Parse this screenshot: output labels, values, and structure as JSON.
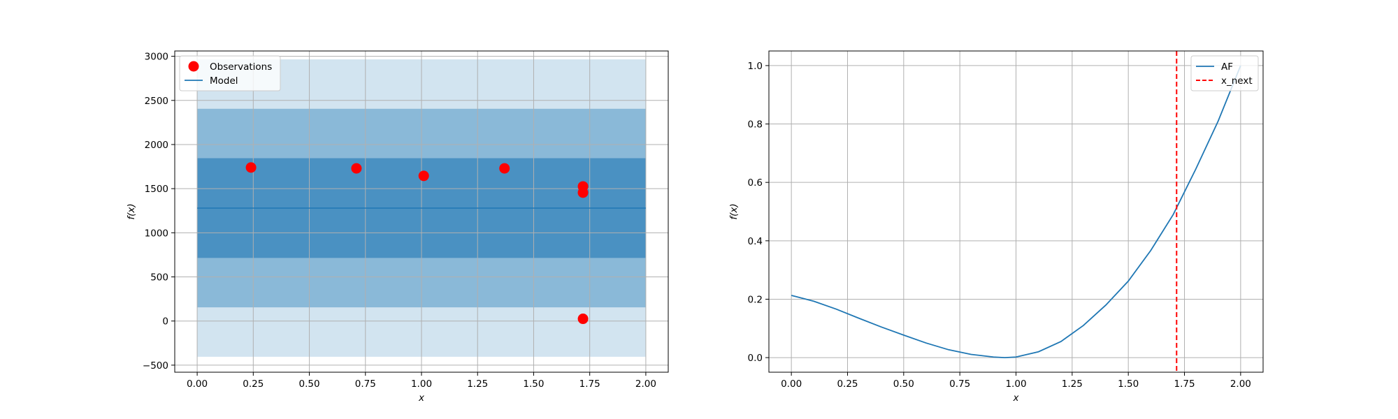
{
  "chart_data": [
    {
      "type": "line",
      "xlabel": "x",
      "ylabel": "f(x)",
      "xlim": [
        -0.1,
        2.1
      ],
      "ylim": [
        -580,
        3060
      ],
      "xticks": [
        0.0,
        0.25,
        0.5,
        0.75,
        1.0,
        1.25,
        1.5,
        1.75,
        2.0
      ],
      "xtick_labels": [
        "0.00",
        "0.25",
        "0.50",
        "0.75",
        "1.00",
        "1.25",
        "1.50",
        "1.75",
        "2.00"
      ],
      "yticks": [
        -500,
        0,
        500,
        1000,
        1500,
        2000,
        2500,
        3000
      ],
      "ytick_labels": [
        "−500",
        "0",
        "500",
        "1000",
        "1500",
        "2000",
        "2500",
        "3000"
      ],
      "grid": true,
      "legend": {
        "placement": "upper left",
        "entries": [
          {
            "label": "Observations",
            "marker": "circle",
            "color": "#ff0000"
          },
          {
            "label": "Model",
            "marker": "line",
            "color": "#1f77b4"
          }
        ]
      },
      "model": {
        "name": "Model",
        "x": [
          0.0,
          2.0
        ],
        "y": [
          1280,
          1280
        ],
        "color": "#1f77b4"
      },
      "bands": [
        {
          "lower": -405,
          "upper": 2965,
          "opacity": 0.2
        },
        {
          "lower": 155,
          "upper": 2405,
          "opacity": 0.4
        },
        {
          "lower": 715,
          "upper": 1845,
          "opacity": 0.6
        }
      ],
      "band_x": [
        0.0,
        2.0
      ],
      "band_color": "#1f77b4",
      "observations": {
        "name": "Observations",
        "color": "#ff0000",
        "points": [
          {
            "x": 0.24,
            "y": 1740
          },
          {
            "x": 0.71,
            "y": 1730
          },
          {
            "x": 1.01,
            "y": 1645
          },
          {
            "x": 1.37,
            "y": 1730
          },
          {
            "x": 1.72,
            "y": 1525
          },
          {
            "x": 1.72,
            "y": 1455
          },
          {
            "x": 1.72,
            "y": 25
          }
        ]
      }
    },
    {
      "type": "line",
      "xlabel": "x",
      "ylabel": "f(x)",
      "xlim": [
        -0.1,
        2.1
      ],
      "ylim": [
        -0.05,
        1.05
      ],
      "xticks": [
        0.0,
        0.25,
        0.5,
        0.75,
        1.0,
        1.25,
        1.5,
        1.75,
        2.0
      ],
      "xtick_labels": [
        "0.00",
        "0.25",
        "0.50",
        "0.75",
        "1.00",
        "1.25",
        "1.50",
        "1.75",
        "2.00"
      ],
      "yticks": [
        0.0,
        0.2,
        0.4,
        0.6,
        0.8,
        1.0
      ],
      "ytick_labels": [
        "0.0",
        "0.2",
        "0.4",
        "0.6",
        "0.8",
        "1.0"
      ],
      "grid": true,
      "legend": {
        "placement": "upper right",
        "entries": [
          {
            "label": "AF",
            "marker": "line",
            "color": "#1f77b4"
          },
          {
            "label": "x_next",
            "marker": "dashed-line",
            "color": "#ff0000"
          }
        ]
      },
      "af_curve": {
        "name": "AF",
        "color": "#1f77b4",
        "x": [
          0.0,
          0.1,
          0.2,
          0.3,
          0.4,
          0.5,
          0.6,
          0.7,
          0.8,
          0.9,
          0.95,
          1.0,
          1.1,
          1.2,
          1.3,
          1.4,
          1.5,
          1.6,
          1.7,
          1.8,
          1.9,
          2.0
        ],
        "y": [
          0.213,
          0.193,
          0.166,
          0.135,
          0.105,
          0.077,
          0.05,
          0.027,
          0.011,
          0.002,
          0.0,
          0.002,
          0.02,
          0.055,
          0.11,
          0.18,
          0.262,
          0.367,
          0.49,
          0.645,
          0.81,
          1.0
        ]
      },
      "x_next": {
        "name": "x_next",
        "x": 1.715,
        "color": "#ff0000"
      }
    }
  ]
}
